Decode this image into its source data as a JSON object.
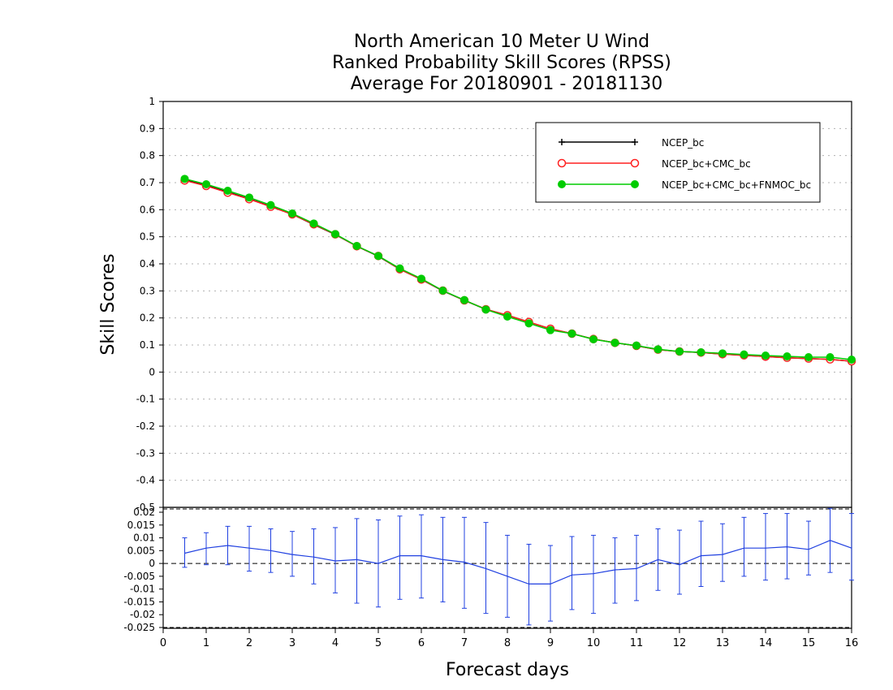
{
  "title_lines": [
    "North American 10 Meter U Wind",
    "Ranked Probability Skill Scores (RPSS)",
    "Average For 20180901 - 20181130"
  ],
  "colors": {
    "ncep": "#000000",
    "cmc": "#ff2020",
    "fnmoc": "#00cc00",
    "diff": "#2040e0",
    "grid": "#b0b0b0"
  },
  "chart_data": [
    {
      "type": "line",
      "title": "North American 10 Meter U Wind / Ranked Probability Skill Scores (RPSS) / Average For 20180901 - 20181130",
      "xlabel": "",
      "ylabel": "Skill Scores",
      "xlim": [
        0,
        16
      ],
      "ylim": [
        -0.5,
        1
      ],
      "grid": true,
      "legend_position": "top-right",
      "yticks": [
        "1",
        "0.9",
        "0.8",
        "0.7",
        "0.6",
        "0.5",
        "0.4",
        "0.3",
        "0.2",
        "0.1",
        "0",
        "-0.1",
        "-0.2",
        "-0.3",
        "-0.4",
        "-0.5"
      ],
      "x": [
        0.5,
        1.0,
        1.5,
        2.0,
        2.5,
        3.0,
        3.5,
        4.0,
        4.5,
        5.0,
        5.5,
        6.0,
        6.5,
        7.0,
        7.5,
        8.0,
        8.5,
        9.0,
        9.5,
        10.0,
        10.5,
        11.0,
        11.5,
        12.0,
        12.5,
        13.0,
        13.5,
        14.0,
        14.5,
        15.0,
        15.5,
        16.0
      ],
      "series": [
        {
          "name": "NCEP_bc",
          "color": "#000000",
          "marker": "plus",
          "values": [
            0.71,
            0.69,
            0.665,
            0.64,
            0.612,
            0.583,
            0.545,
            0.508,
            0.465,
            0.428,
            0.38,
            0.342,
            0.3,
            0.265,
            0.232,
            0.21,
            0.185,
            0.16,
            0.142,
            0.122,
            0.108,
            0.097,
            0.083,
            0.076,
            0.072,
            0.066,
            0.062,
            0.057,
            0.053,
            0.05,
            0.047,
            0.04
          ]
        },
        {
          "name": "NCEP_bc+CMC_bc",
          "color": "#ff2020",
          "marker": "open-circle",
          "values": [
            0.708,
            0.688,
            0.663,
            0.639,
            0.611,
            0.583,
            0.546,
            0.509,
            0.465,
            0.429,
            0.38,
            0.342,
            0.301,
            0.265,
            0.232,
            0.21,
            0.185,
            0.16,
            0.142,
            0.122,
            0.108,
            0.097,
            0.083,
            0.076,
            0.072,
            0.066,
            0.062,
            0.057,
            0.053,
            0.05,
            0.047,
            0.04
          ]
        },
        {
          "name": "NCEP_bc+CMC_bc+FNMOC_bc",
          "color": "#00cc00",
          "marker": "filled-circle",
          "values": [
            0.714,
            0.694,
            0.67,
            0.645,
            0.617,
            0.586,
            0.549,
            0.51,
            0.466,
            0.429,
            0.383,
            0.345,
            0.301,
            0.266,
            0.231,
            0.205,
            0.18,
            0.155,
            0.142,
            0.121,
            0.108,
            0.098,
            0.084,
            0.076,
            0.073,
            0.069,
            0.065,
            0.061,
            0.058,
            0.055,
            0.055,
            0.046
          ]
        }
      ]
    },
    {
      "type": "line",
      "title": "",
      "xlabel": "Forecast days",
      "ylabel": "",
      "xlim": [
        0,
        16
      ],
      "ylim": [
        -0.025,
        0.02
      ],
      "grid": false,
      "zero_line": "dashed",
      "xticks": [
        "0",
        "1",
        "2",
        "3",
        "4",
        "5",
        "6",
        "7",
        "8",
        "9",
        "10",
        "11",
        "12",
        "13",
        "14",
        "15",
        "16"
      ],
      "yticks": [
        "0.02",
        "0.015",
        "0.01",
        "0.005",
        "0",
        "-0.005",
        "-0.01",
        "-0.015",
        "-0.02",
        "-0.025"
      ],
      "x": [
        0.5,
        1.0,
        1.5,
        2.0,
        2.5,
        3.0,
        3.5,
        4.0,
        4.5,
        5.0,
        5.5,
        6.0,
        6.5,
        7.0,
        7.5,
        8.0,
        8.5,
        9.0,
        9.5,
        10.0,
        10.5,
        11.0,
        11.5,
        12.0,
        12.5,
        13.0,
        13.5,
        14.0,
        14.5,
        15.0,
        15.5,
        16.0
      ],
      "series": [
        {
          "name": "",
          "color": "#2040e0",
          "values": [
            0.004,
            0.006,
            0.007,
            0.006,
            0.005,
            0.0035,
            0.0025,
            0.001,
            0.0015,
            0.0,
            0.003,
            0.003,
            0.0015,
            0.0005,
            -0.002,
            -0.005,
            -0.008,
            -0.008,
            -0.0045,
            -0.004,
            -0.0025,
            -0.002,
            0.0015,
            -0.0005,
            0.003,
            0.0035,
            0.006,
            0.006,
            0.0065,
            0.0055,
            0.009,
            0.006
          ],
          "error_low": [
            -0.0015,
            -0.0005,
            -0.0005,
            -0.003,
            -0.0035,
            -0.005,
            -0.008,
            -0.0115,
            -0.0155,
            -0.017,
            -0.014,
            -0.0135,
            -0.015,
            -0.0175,
            -0.0195,
            -0.021,
            -0.024,
            -0.0225,
            -0.018,
            -0.0195,
            -0.0155,
            -0.0145,
            -0.0105,
            -0.012,
            -0.009,
            -0.007,
            -0.005,
            -0.0065,
            -0.006,
            -0.0045,
            -0.0035,
            -0.0065
          ],
          "error_high": [
            0.01,
            0.012,
            0.0145,
            0.0145,
            0.0135,
            0.0125,
            0.0135,
            0.014,
            0.0175,
            0.017,
            0.0185,
            0.019,
            0.018,
            0.018,
            0.016,
            0.011,
            0.0075,
            0.007,
            0.0105,
            0.011,
            0.01,
            0.011,
            0.0135,
            0.013,
            0.0165,
            0.0155,
            0.018,
            0.0195,
            0.0195,
            0.0165,
            0.0215,
            0.0195
          ]
        }
      ]
    }
  ]
}
